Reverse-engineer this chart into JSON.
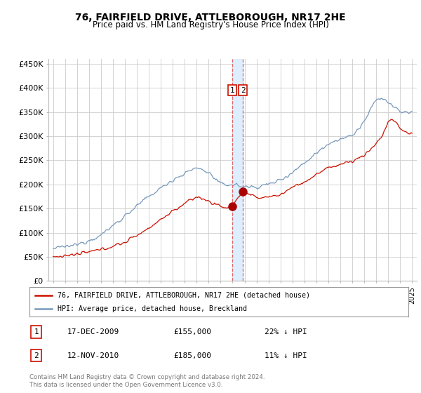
{
  "title": "76, FAIRFIELD DRIVE, ATTLEBOROUGH, NR17 2HE",
  "subtitle": "Price paid vs. HM Land Registry's House Price Index (HPI)",
  "legend_line1": "76, FAIRFIELD DRIVE, ATTLEBOROUGH, NR17 2HE (detached house)",
  "legend_line2": "HPI: Average price, detached house, Breckland",
  "footnote": "Contains HM Land Registry data © Crown copyright and database right 2024.\nThis data is licensed under the Open Government Licence v3.0.",
  "transactions": [
    {
      "label": "1",
      "date": "17-DEC-2009",
      "price": 155000,
      "pct": "22% ↓ HPI",
      "x": 2009.96
    },
    {
      "label": "2",
      "date": "12-NOV-2010",
      "price": 185000,
      "pct": "11% ↓ HPI",
      "x": 2010.87
    }
  ],
  "vline_color": "#dd6666",
  "band_color": "#ddeeff",
  "marker_color": "#aa0000",
  "red_line_color": "#cc1100",
  "blue_line_color": "#7799bb",
  "ylim": [
    0,
    460000
  ],
  "yticks": [
    0,
    50000,
    100000,
    150000,
    200000,
    250000,
    300000,
    350000,
    400000,
    450000
  ],
  "xlim_start": 1994.6,
  "xlim_end": 2025.4,
  "background_color": "#ffffff",
  "grid_color": "#cccccc"
}
